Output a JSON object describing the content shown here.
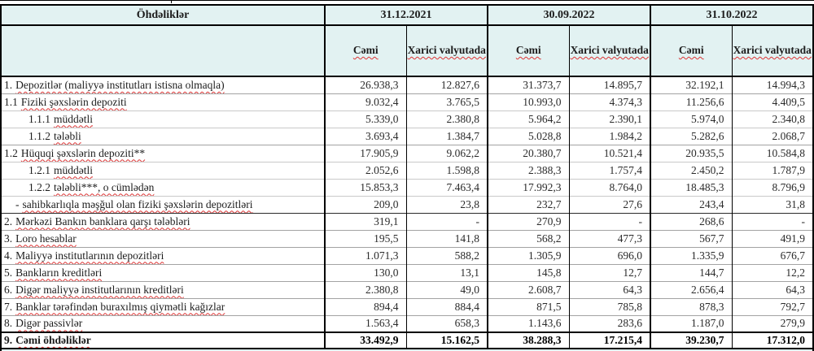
{
  "header": {
    "title": "Öhdəliklər",
    "dates": [
      "31.12.2021",
      "30.09.2022",
      "31.10.2022"
    ],
    "col_total": "Cəmi",
    "col_foreign": "Xarici valyutada"
  },
  "colors": {
    "header_bg": "#e2f2f2",
    "outer_border": "#000000",
    "row_line_light": "#c9c9c9",
    "row_line_mid": "#a3a3a3",
    "spellcheck_underline": "#dd3333"
  },
  "table": {
    "rows": [
      {
        "num": "1.",
        "label": "Depozitlər (maliyyə institutları istisna olmaqla)",
        "indent": 0,
        "sep": "none",
        "bold": false,
        "values": [
          "26.938,3",
          "12.827,6",
          "31.373,7",
          "14.895,7",
          "32.192,1",
          "14.994,3"
        ]
      },
      {
        "num": "1.1",
        "label": "Fiziki şəxslərin depoziti",
        "indent": 0,
        "sep": "mid",
        "bold": false,
        "values": [
          "9.032,4",
          "3.765,5",
          "10.993,0",
          "4.374,3",
          "11.256,6",
          "4.409,5"
        ]
      },
      {
        "num": "1.1.1",
        "label": "müddətli",
        "indent": 2,
        "sep": "light",
        "bold": false,
        "values": [
          "5.339,0",
          "2.380,8",
          "5.964,2",
          "2.390,1",
          "5.974,0",
          "2.340,8"
        ]
      },
      {
        "num": "1.1.2",
        "label": "tələbli",
        "indent": 2,
        "sep": "light",
        "bold": false,
        "values": [
          "3.693,4",
          "1.384,7",
          "5.028,8",
          "1.984,2",
          "5.282,6",
          "2.068,7"
        ]
      },
      {
        "num": "1.2",
        "label": "Hüquqi şəxslərin depoziti**",
        "indent": 0,
        "sep": "mid",
        "bold": false,
        "values": [
          "17.905,9",
          "9.062,2",
          "20.380,7",
          "10.521,4",
          "20.935,5",
          "10.584,8"
        ]
      },
      {
        "num": "1.2.1",
        "label": "müddətli",
        "indent": 2,
        "sep": "light",
        "bold": false,
        "values": [
          "2.052,6",
          "1.598,8",
          "2.388,3",
          "1.757,4",
          "2.450,2",
          "1.787,9"
        ]
      },
      {
        "num": "1.2.2",
        "label": "tələbli***, o cümlədən",
        "indent": 2,
        "sep": "light",
        "bold": false,
        "values": [
          "15.853,3",
          "7.463,4",
          "17.992,3",
          "8.764,0",
          "18.485,3",
          "8.796,9"
        ]
      },
      {
        "num": "-",
        "label": "sahibkarlıqla məşğul olan fiziki şəxslərin depozitləri",
        "indent": 1,
        "sep": "light",
        "bold": false,
        "values": [
          "209,0",
          "23,8",
          "232,7",
          "27,6",
          "243,4",
          "31,8"
        ]
      },
      {
        "num": "2.",
        "label": "Mərkəzi Bankın banklara qarşı tələbləri",
        "indent": 0,
        "sep": "dark",
        "bold": false,
        "values": [
          "319,1",
          "-",
          "270,9",
          "-",
          "268,6",
          "-"
        ]
      },
      {
        "num": "3.",
        "label": "Loro hesablar",
        "indent": 0,
        "sep": "mid",
        "bold": false,
        "values": [
          "195,5",
          "141,8",
          "568,2",
          "477,3",
          "567,7",
          "491,9"
        ]
      },
      {
        "num": "4.",
        "label": "Maliyyə institutlarının  depozitləri",
        "indent": 0,
        "sep": "mid",
        "bold": false,
        "values": [
          "1.071,3",
          "588,2",
          "1.305,9",
          "696,0",
          "1.335,9",
          "676,7"
        ]
      },
      {
        "num": "5.",
        "label": "Bankların kreditləri",
        "indent": 0,
        "sep": "mid",
        "bold": false,
        "values": [
          "130,0",
          "13,1",
          "145,8",
          "12,7",
          "144,7",
          "12,2"
        ]
      },
      {
        "num": "6.",
        "label": "Digər maliyyə institutlarının kreditləri",
        "indent": 0,
        "sep": "mid",
        "bold": false,
        "values": [
          "2.380,8",
          "49,0",
          "2.608,7",
          "64,3",
          "2.656,4",
          "64,3"
        ]
      },
      {
        "num": "7.",
        "label": "Banklar tərəfindən buraxılmış qiymətli kağızlar",
        "indent": 0,
        "sep": "mid",
        "bold": false,
        "values": [
          "894,4",
          "884,4",
          "871,5",
          "785,8",
          "878,3",
          "792,7"
        ]
      },
      {
        "num": "8.",
        "label": "Digər passivlər",
        "indent": 0,
        "sep": "mid",
        "bold": false,
        "values": [
          "1.563,4",
          "658,3",
          "1.143,6",
          "283,6",
          "1.187,0",
          "279,9"
        ]
      },
      {
        "num": "9.",
        "label": "Cəmi öhdəliklər",
        "indent": 0,
        "sep": "heavy",
        "bold": true,
        "values": [
          "33.492,9",
          "15.162,5",
          "38.288,3",
          "17.215,4",
          "39.230,7",
          "17.312,0"
        ]
      }
    ]
  }
}
